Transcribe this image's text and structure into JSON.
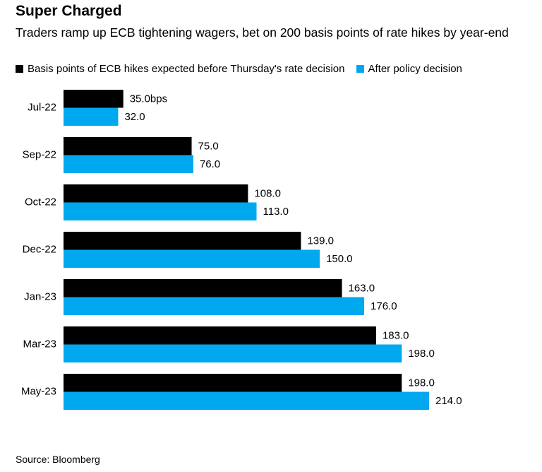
{
  "chart_data": {
    "type": "bar",
    "orientation": "horizontal",
    "title": "Super Charged",
    "subtitle": "Traders ramp up ECB tightening wagers, bet on 200 basis points of rate hikes by year-end",
    "categories": [
      "Jul-22",
      "Sep-22",
      "Oct-22",
      "Dec-22",
      "Jan-23",
      "Mar-23",
      "May-23"
    ],
    "series": [
      {
        "name": "Basis points of ECB hikes expected before Thursday's rate decision",
        "color": "#000000",
        "values": [
          35,
          75,
          108,
          139,
          163,
          183,
          198
        ],
        "value_labels": [
          "35.0bps",
          "75.0",
          "108.0",
          "139.0",
          "163.0",
          "183.0",
          "198.0"
        ]
      },
      {
        "name": "After policy decision",
        "color": "#00a8f0",
        "values": [
          32,
          76,
          113,
          150,
          176,
          198,
          214
        ],
        "value_labels": [
          "32.0",
          "76.0",
          "113.0",
          "150.0",
          "176.0",
          "198.0",
          "214.0"
        ]
      }
    ],
    "source": "Source: Bloomberg"
  }
}
